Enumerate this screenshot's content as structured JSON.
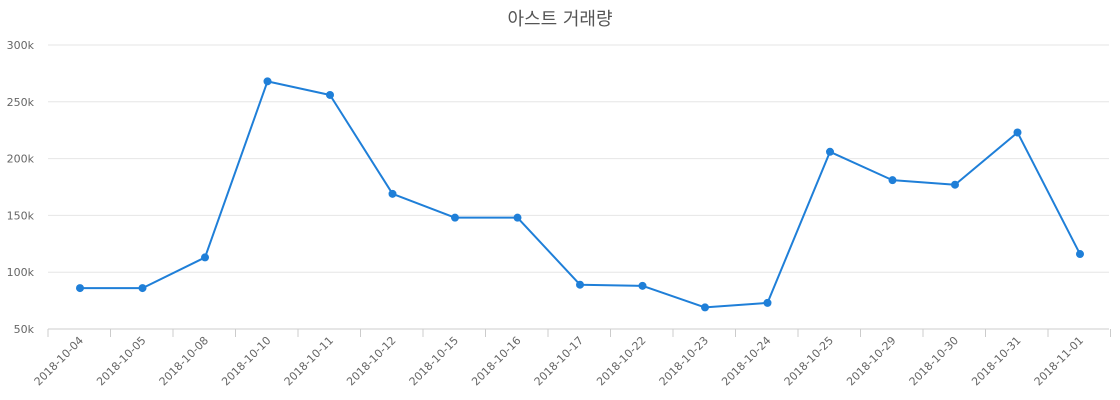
{
  "chart_data": {
    "type": "line",
    "title": "아스트 거래량",
    "xlabel": "",
    "ylabel": "",
    "categories": [
      "2018-10-04",
      "2018-10-05",
      "2018-10-08",
      "2018-10-10",
      "2018-10-11",
      "2018-10-12",
      "2018-10-15",
      "2018-10-16",
      "2018-10-17",
      "2018-10-22",
      "2018-10-23",
      "2018-10-24",
      "2018-10-25",
      "2018-10-29",
      "2018-10-30",
      "2018-10-31",
      "2018-11-01"
    ],
    "series": [
      {
        "color": "#1f7fd8",
        "values": [
          86000,
          86000,
          113000,
          268000,
          256000,
          169000,
          148000,
          148000,
          89000,
          88000,
          69000,
          73000,
          206000,
          181000,
          177000,
          223000,
          116000
        ]
      }
    ],
    "ylim": [
      50000,
      300000
    ],
    "y_ticks": [
      50000,
      100000,
      150000,
      200000,
      250000,
      300000
    ],
    "y_tick_labels": [
      "50k",
      "100k",
      "150k",
      "200k",
      "250k",
      "300k"
    ],
    "grid": true,
    "legend": "none"
  }
}
